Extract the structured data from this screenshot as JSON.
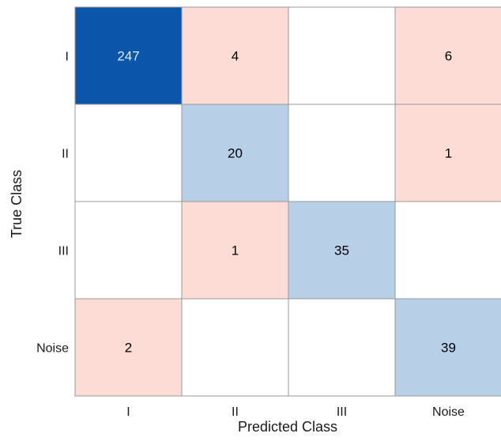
{
  "chart_data": {
    "type": "heatmap",
    "title": "",
    "xlabel": "Predicted Class",
    "ylabel": "True Class",
    "x_categories": [
      "I",
      "II",
      "III",
      "Noise"
    ],
    "y_categories": [
      "I",
      "II",
      "III",
      "Noise"
    ],
    "values": [
      [
        247,
        4,
        null,
        6
      ],
      [
        null,
        20,
        null,
        1
      ],
      [
        null,
        1,
        35,
        null
      ],
      [
        2,
        null,
        null,
        39
      ]
    ],
    "colors": {
      "diagonal_dark": "#0b56ab",
      "diagonal_light": "#b7d0e8",
      "off_diagonal": "#fcdcd4",
      "empty": "#ffffff",
      "grid_line": "#9a9a9a",
      "text_dark": "#000000",
      "text_light": "#d6ecff"
    }
  }
}
